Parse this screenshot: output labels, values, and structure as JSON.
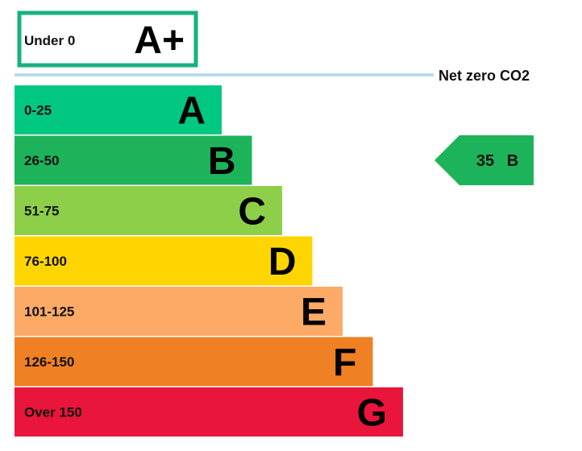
{
  "chart_data": {
    "type": "bar",
    "top_band": {
      "range": "Under 0",
      "letter": "A+",
      "border_color": "#17b17f"
    },
    "net_zero_label": "Net zero CO2",
    "net_zero_line_color": "#b9dde8",
    "bands": [
      {
        "letter": "A",
        "range": "0-25",
        "color": "#00c781",
        "order": 1
      },
      {
        "letter": "B",
        "range": "26-50",
        "color": "#1db35a",
        "order": 2
      },
      {
        "letter": "C",
        "range": "51-75",
        "color": "#8ecf4a",
        "order": 3
      },
      {
        "letter": "D",
        "range": "76-100",
        "color": "#ffd500",
        "order": 4
      },
      {
        "letter": "E",
        "range": "101-125",
        "color": "#fcaa65",
        "order": 5
      },
      {
        "letter": "F",
        "range": "126-150",
        "color": "#ef8023",
        "order": 6
      },
      {
        "letter": "G",
        "range": "Over 150",
        "color": "#e9153b",
        "order": 7
      }
    ],
    "current_rating": {
      "value": "35",
      "letter": "B",
      "color": "#1db35a"
    }
  }
}
